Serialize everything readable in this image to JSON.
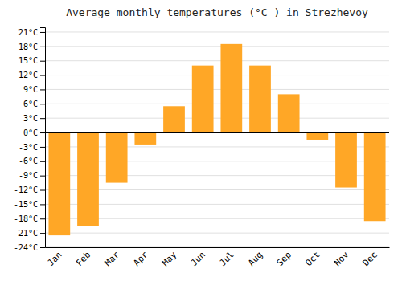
{
  "chart_data": {
    "type": "bar",
    "title": "Average monthly temperatures (°C ) in Strezhevoy",
    "categories": [
      "Jan",
      "Feb",
      "Mar",
      "Apr",
      "May",
      "Jun",
      "Jul",
      "Aug",
      "Sep",
      "Oct",
      "Nov",
      "Dec"
    ],
    "values": [
      -21.5,
      -19.5,
      -10.5,
      -2.5,
      5.5,
      14.0,
      18.5,
      14.0,
      8.0,
      -1.5,
      -11.5,
      -18.5
    ],
    "color": "#FFA726",
    "ylim": [
      -24,
      22
    ],
    "yticks": [
      {
        "value": -24,
        "label": "-24°C"
      },
      {
        "value": -21,
        "label": "-21°C"
      },
      {
        "value": -18,
        "label": "-18°C"
      },
      {
        "value": -15,
        "label": "-15°C"
      },
      {
        "value": -12,
        "label": "-12°C"
      },
      {
        "value": -9,
        "label": "-9°C"
      },
      {
        "value": -6,
        "label": "-6°C"
      },
      {
        "value": -3,
        "label": "-3°C"
      },
      {
        "value": 0,
        "label": "0°C"
      },
      {
        "value": 3,
        "label": "3°C"
      },
      {
        "value": 6,
        "label": "6°C"
      },
      {
        "value": 9,
        "label": "9°C"
      },
      {
        "value": 12,
        "label": "12°C"
      },
      {
        "value": 15,
        "label": "15°C"
      },
      {
        "value": 18,
        "label": "18°C"
      },
      {
        "value": 21,
        "label": "21°C"
      }
    ],
    "grid": true
  }
}
